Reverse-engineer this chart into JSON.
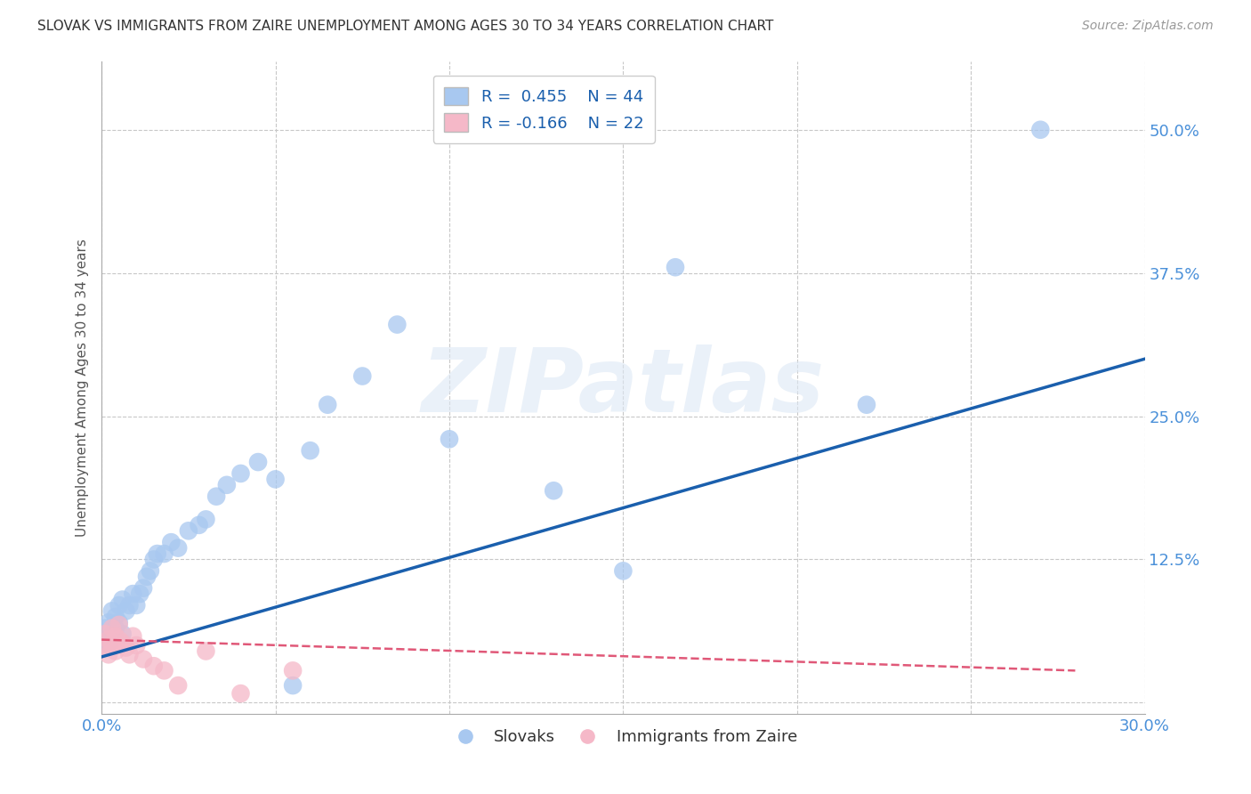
{
  "title": "SLOVAK VS IMMIGRANTS FROM ZAIRE UNEMPLOYMENT AMONG AGES 30 TO 34 YEARS CORRELATION CHART",
  "source": "Source: ZipAtlas.com",
  "ylabel": "Unemployment Among Ages 30 to 34 years",
  "xlim": [
    0.0,
    0.3
  ],
  "ylim": [
    -0.01,
    0.56
  ],
  "xticks": [
    0.0,
    0.05,
    0.1,
    0.15,
    0.2,
    0.25,
    0.3
  ],
  "xticklabels": [
    "0.0%",
    "",
    "",
    "",
    "",
    "",
    "30.0%"
  ],
  "yticks": [
    0.0,
    0.125,
    0.25,
    0.375,
    0.5
  ],
  "yticklabels": [
    "",
    "12.5%",
    "25.0%",
    "37.5%",
    "50.0%"
  ],
  "blue_R": 0.455,
  "blue_N": 44,
  "pink_R": -0.166,
  "pink_N": 22,
  "blue_color": "#a8c8f0",
  "pink_color": "#f5b8c8",
  "blue_line_color": "#1a5fad",
  "pink_line_color": "#e05878",
  "grid_color": "#c8c8c8",
  "background_color": "#ffffff",
  "watermark": "ZIPatlas",
  "legend_label_blue": "Slovaks",
  "legend_label_pink": "Immigrants from Zaire",
  "blue_scatter_x": [
    0.001,
    0.001,
    0.002,
    0.002,
    0.003,
    0.003,
    0.004,
    0.004,
    0.005,
    0.005,
    0.006,
    0.006,
    0.007,
    0.008,
    0.009,
    0.01,
    0.011,
    0.012,
    0.013,
    0.014,
    0.015,
    0.016,
    0.018,
    0.02,
    0.022,
    0.025,
    0.028,
    0.03,
    0.033,
    0.036,
    0.04,
    0.045,
    0.05,
    0.055,
    0.06,
    0.065,
    0.075,
    0.085,
    0.1,
    0.13,
    0.15,
    0.165,
    0.22,
    0.27
  ],
  "blue_scatter_y": [
    0.055,
    0.065,
    0.05,
    0.07,
    0.06,
    0.08,
    0.065,
    0.075,
    0.07,
    0.085,
    0.06,
    0.09,
    0.08,
    0.085,
    0.095,
    0.085,
    0.095,
    0.1,
    0.11,
    0.115,
    0.125,
    0.13,
    0.13,
    0.14,
    0.135,
    0.15,
    0.155,
    0.16,
    0.18,
    0.19,
    0.2,
    0.21,
    0.195,
    0.015,
    0.22,
    0.26,
    0.285,
    0.33,
    0.23,
    0.185,
    0.115,
    0.38,
    0.26,
    0.5
  ],
  "pink_scatter_x": [
    0.001,
    0.001,
    0.002,
    0.002,
    0.003,
    0.003,
    0.004,
    0.004,
    0.005,
    0.005,
    0.006,
    0.007,
    0.008,
    0.009,
    0.01,
    0.012,
    0.015,
    0.018,
    0.022,
    0.03,
    0.04,
    0.055
  ],
  "pink_scatter_y": [
    0.048,
    0.06,
    0.042,
    0.055,
    0.05,
    0.065,
    0.045,
    0.058,
    0.055,
    0.068,
    0.052,
    0.048,
    0.042,
    0.058,
    0.05,
    0.038,
    0.032,
    0.028,
    0.015,
    0.045,
    0.008,
    0.028
  ]
}
